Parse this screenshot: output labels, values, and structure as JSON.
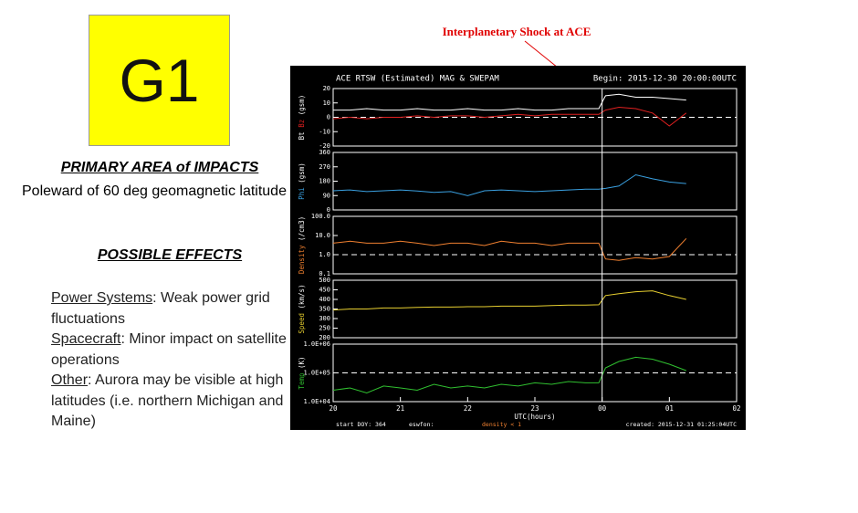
{
  "badge": "G1",
  "impacts": {
    "heading": "PRIMARY AREA of IMPACTS",
    "text": "Poleward of 60 deg geomagnetic latitude"
  },
  "effects": {
    "heading": "POSSIBLE EFFECTS",
    "items": [
      {
        "label": "Power Systems",
        "text": ": Weak power grid fluctuations"
      },
      {
        "label": "Spacecraft",
        "text": ": Minor impact on satellite operations"
      },
      {
        "label": "Other",
        "text": ": Aurora may be visible at high latitudes (i.e. northern Michigan and Maine)"
      }
    ]
  },
  "annotation": "Interplanetary Shock at ACE",
  "plot": {
    "title": "ACE RTSW (Estimated) MAG & SWEPAM",
    "begin": "Begin: 2015-12-30 20:00:00UTC",
    "xlabel": "UTC(hours)",
    "xlim": [
      20,
      26
    ],
    "xticks": [
      20,
      21,
      22,
      23,
      {
        "value": 24,
        "label": "00"
      },
      {
        "value": 25,
        "label": "01"
      },
      {
        "value": 26,
        "label": "02"
      }
    ],
    "marker_x": 24,
    "x": [
      20,
      20.25,
      20.5,
      20.75,
      21,
      21.25,
      21.5,
      21.75,
      22,
      22.25,
      22.5,
      22.75,
      23,
      23.25,
      23.5,
      23.75,
      23.95,
      24.05,
      24.25,
      24.5,
      24.75,
      25,
      25.25
    ],
    "panels": [
      {
        "ylabel": [
          {
            "text": "Bt",
            "color": "#ffffff"
          },
          {
            "text": "Bz",
            "color": "#e02020"
          },
          {
            "text": "(gsm)",
            "color": "#ffffff"
          }
        ],
        "ylim": [
          -20,
          20
        ],
        "yticks": [
          -20,
          -10,
          0,
          10,
          20
        ],
        "refline": 0,
        "log": false,
        "series": [
          {
            "color": "#ffffff",
            "values": [
              5,
              5,
              6,
              5,
              5,
              6,
              5,
              5,
              6,
              5,
              5,
              6,
              5,
              5,
              6,
              6,
              6,
              15,
              16,
              14,
              14,
              13,
              12
            ]
          },
          {
            "color": "#e02020",
            "values": [
              -1,
              0,
              -1,
              0,
              0,
              1,
              0,
              1,
              1,
              0,
              1,
              2,
              1,
              2,
              2,
              2,
              2,
              5,
              7,
              6,
              3,
              -6,
              3
            ]
          }
        ]
      },
      {
        "ylabel": [
          {
            "text": "Phi",
            "color": "#3aa0e0"
          },
          {
            "text": "(gsm)",
            "color": "#ffffff"
          }
        ],
        "ylim": [
          0,
          360
        ],
        "yticks": [
          0,
          90,
          180,
          270,
          360
        ],
        "log": false,
        "series": [
          {
            "color": "#3aa0e0",
            "values": [
              120,
              125,
              115,
              120,
              125,
              118,
              110,
              115,
              90,
              120,
              125,
              120,
              115,
              120,
              125,
              130,
              130,
              135,
              150,
              220,
              195,
              175,
              165
            ]
          }
        ]
      },
      {
        "ylabel": [
          {
            "text": "Density",
            "color": "#f08030"
          },
          {
            "text": "(/cm3)",
            "color": "#ffffff"
          }
        ],
        "ylim": [
          0.1,
          100
        ],
        "yticks": [
          0.1,
          {
            "value": 1,
            "label": "1.0"
          },
          {
            "value": 10,
            "label": "10.0"
          },
          {
            "value": 100,
            "label": "100.0"
          }
        ],
        "refline": 1,
        "log": true,
        "series": [
          {
            "color": "#f08030",
            "values": [
              4,
              5,
              4,
              4,
              5,
              4,
              3,
              4,
              4,
              3,
              5,
              4,
              4,
              3,
              4,
              4,
              4,
              0.6,
              0.5,
              0.7,
              0.6,
              0.8,
              7
            ]
          }
        ]
      },
      {
        "ylabel": [
          {
            "text": "Speed",
            "color": "#e8d030"
          },
          {
            "text": "(km/s)",
            "color": "#ffffff"
          }
        ],
        "ylim": [
          200,
          500
        ],
        "yticks": [
          200,
          250,
          300,
          350,
          400,
          450,
          500
        ],
        "log": false,
        "series": [
          {
            "color": "#e8d030",
            "values": [
              345,
              350,
              350,
              355,
              355,
              358,
              360,
              360,
              362,
              362,
              365,
              365,
              365,
              368,
              370,
              370,
              372,
              420,
              430,
              440,
              445,
              420,
              400
            ]
          }
        ]
      },
      {
        "ylabel": [
          {
            "text": "Temp",
            "color": "#30c030"
          },
          {
            "text": "(K)",
            "color": "#ffffff"
          }
        ],
        "ylim": [
          10000,
          1000000
        ],
        "yticks": [
          {
            "value": 10000,
            "label": "1.0E+04"
          },
          {
            "value": 100000,
            "label": "1.0E+05"
          },
          {
            "value": 1000000,
            "label": "1.0E+06"
          }
        ],
        "refline": 100000,
        "log": true,
        "series": [
          {
            "color": "#30c030",
            "values": [
              25000,
              30000,
              20000,
              35000,
              30000,
              25000,
              40000,
              30000,
              35000,
              30000,
              40000,
              35000,
              45000,
              40000,
              50000,
              45000,
              45000,
              150000,
              250000,
              350000,
              300000,
              200000,
              120000
            ]
          }
        ]
      }
    ],
    "footer": {
      "start": "start DOY: 364",
      "source": "eswfon:",
      "note": "density < 1",
      "created": "created: 2015-12-31 01:25:04UTC"
    }
  }
}
